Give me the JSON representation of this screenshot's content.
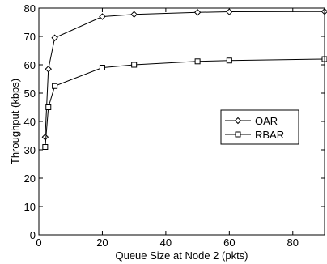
{
  "chart_data": {
    "type": "line",
    "title": "",
    "xlabel": "Queue Size at Node 2 (pkts)",
    "ylabel": "Throughput (kbps)",
    "xlim": [
      0,
      90
    ],
    "ylim": [
      0,
      80
    ],
    "xticks": [
      "0",
      "20",
      "40",
      "60",
      "80"
    ],
    "yticks": [
      "0",
      "10",
      "20",
      "30",
      "40",
      "50",
      "60",
      "70",
      "80"
    ],
    "grid": false,
    "legend_position": "right",
    "series": [
      {
        "name": "OAR",
        "marker": "diamond",
        "color": "#000000",
        "x": [
          2,
          3,
          5,
          20,
          30,
          50,
          60,
          90
        ],
        "y": [
          34.5,
          58.5,
          69.5,
          77.0,
          77.8,
          78.5,
          78.7,
          78.8
        ]
      },
      {
        "name": "RBAR",
        "marker": "square",
        "color": "#000000",
        "x": [
          2,
          3,
          5,
          20,
          30,
          50,
          60,
          90
        ],
        "y": [
          31.0,
          45.0,
          52.5,
          59.0,
          60.0,
          61.2,
          61.5,
          62.0
        ]
      }
    ]
  }
}
